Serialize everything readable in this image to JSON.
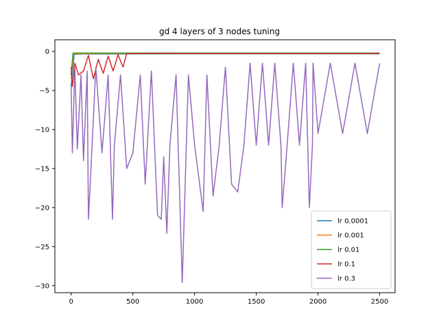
{
  "chart_data": {
    "type": "line",
    "title": "gd 4 layers of 3 nodes tuning",
    "xlabel": "",
    "ylabel": "",
    "xlim": [
      -132,
      2625
    ],
    "ylim": [
      -30.9,
      1.5
    ],
    "xticks": [
      0,
      500,
      1000,
      1500,
      2000,
      2500
    ],
    "yticks": [
      0,
      -5,
      -10,
      -15,
      -20,
      -25,
      -30
    ],
    "grid": false,
    "legend_position": "lower-right",
    "series": [
      {
        "name": "lr 0.0001",
        "color": "#1f77b4",
        "x": [
          0,
          25,
          100,
          250,
          500,
          1000,
          1500,
          2000,
          2500
        ],
        "y": [
          -4.5,
          -0.35,
          -0.33,
          -0.32,
          -0.31,
          -0.3,
          -0.3,
          -0.3,
          -0.3
        ]
      },
      {
        "name": "lr 0.001",
        "color": "#ff7f0e",
        "x": [
          0,
          20,
          100,
          250,
          500,
          1000,
          1500,
          2000,
          2500
        ],
        "y": [
          -3.5,
          -0.3,
          -0.28,
          -0.26,
          -0.25,
          -0.25,
          -0.25,
          -0.25,
          -0.25
        ]
      },
      {
        "name": "lr 0.01",
        "color": "#2ca02c",
        "x": [
          0,
          15,
          100,
          250,
          500,
          1000,
          1500,
          2000,
          2500
        ],
        "y": [
          -3.0,
          -0.2,
          -0.2,
          -0.2,
          -0.2,
          -0.2,
          -0.2,
          -0.2,
          -0.2
        ]
      },
      {
        "name": "lr 0.1",
        "color": "#d62728",
        "x": [
          0,
          10,
          30,
          60,
          100,
          140,
          180,
          220,
          260,
          300,
          340,
          380,
          420,
          450,
          500,
          1000,
          1500,
          2000,
          2500
        ],
        "y": [
          -2.0,
          -4.5,
          -1.5,
          -3.0,
          -2.5,
          -0.5,
          -3.5,
          -1.0,
          -2.8,
          -0.6,
          -2.5,
          -0.4,
          -2.0,
          -0.3,
          -0.25,
          -0.25,
          -0.25,
          -0.25,
          -0.25
        ]
      },
      {
        "name": "lr 0.3",
        "color": "#9467bd",
        "x": [
          0,
          10,
          30,
          50,
          80,
          100,
          130,
          140,
          170,
          200,
          250,
          300,
          335,
          350,
          400,
          450,
          500,
          560,
          600,
          650,
          700,
          730,
          750,
          775,
          800,
          850,
          900,
          950,
          1000,
          1070,
          1100,
          1150,
          1200,
          1250,
          1300,
          1350,
          1400,
          1450,
          1500,
          1550,
          1600,
          1650,
          1700,
          1710,
          1750,
          1800,
          1850,
          1900,
          1930,
          1955,
          1960,
          2000,
          2100,
          2200,
          2300,
          2400,
          2500
        ],
        "y": [
          -4.5,
          -13.0,
          -2.0,
          -12.5,
          -3.0,
          -14.0,
          -2.5,
          -21.5,
          -12.0,
          -2.0,
          -13.0,
          -3.0,
          -21.5,
          -12.0,
          -3.0,
          -15.0,
          -13.0,
          -3.0,
          -17.0,
          -2.5,
          -21.0,
          -21.5,
          -13.5,
          -23.3,
          -12.0,
          -3.0,
          -29.6,
          -3.0,
          -12.0,
          -20.5,
          -3.0,
          -18.5,
          -12.0,
          -2.0,
          -17.0,
          -18.0,
          -12.0,
          -1.5,
          -12.0,
          -1.5,
          -12.0,
          -1.5,
          -12.0,
          -20.0,
          -12.0,
          -1.5,
          -12.0,
          -1.5,
          -20.0,
          -12.0,
          -1.5,
          -10.5,
          -1.5,
          -10.5,
          -1.5,
          -10.5,
          -1.5
        ]
      }
    ]
  }
}
